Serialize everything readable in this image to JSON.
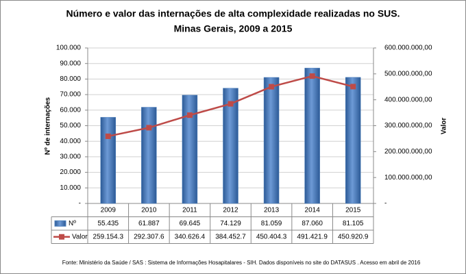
{
  "chart_data": {
    "type": "combo",
    "title": "Número e valor das internações de alta complexidade realizadas no SUS.",
    "subtitle": "Minas Gerais, 2009 a 2015",
    "y_label": "Nº de internações",
    "y2_label": "Valor",
    "source": "Fonte:  Ministério da Saúde / SAS : Sistema de Informações Hosapitalares - SIH. Dados disponíveis no site do DATASUS . Acesso em abril de 2016",
    "categories": [
      "2009",
      "2010",
      "2011",
      "2012",
      "2013",
      "2014",
      "2015"
    ],
    "series": [
      {
        "name": "Nº",
        "type": "bar",
        "color": "#4f81bd",
        "values": [
          55435,
          61887,
          69645,
          74129,
          81059,
          87060,
          81105
        ],
        "value_labels": [
          "55.435",
          "61.887",
          "69.645",
          "74.129",
          "81.059",
          "87.060",
          "81.105"
        ]
      },
      {
        "name": "Valor",
        "type": "line",
        "axis": "y2",
        "color": "#be4b48",
        "values": [
          259154300,
          292307600,
          340626400,
          384452700,
          450404300,
          491421900,
          450920900
        ],
        "value_labels": [
          "259.154.3",
          "292.307.6",
          "340.626.4",
          "384.452.7",
          "450.404.3",
          "491.421.9",
          "450.920.9"
        ]
      }
    ],
    "ylim": [
      0,
      100000
    ],
    "yticks": [
      {
        "value": 0,
        "label": "-"
      },
      {
        "value": 10000,
        "label": "10.000"
      },
      {
        "value": 20000,
        "label": "20.000"
      },
      {
        "value": 30000,
        "label": "30.000"
      },
      {
        "value": 40000,
        "label": "40.000"
      },
      {
        "value": 50000,
        "label": "50.000"
      },
      {
        "value": 60000,
        "label": "60.000"
      },
      {
        "value": 70000,
        "label": "70.000"
      },
      {
        "value": 80000,
        "label": "80.000"
      },
      {
        "value": 90000,
        "label": "90.000"
      },
      {
        "value": 100000,
        "label": "100.000"
      }
    ],
    "y2lim": [
      0,
      600000000
    ],
    "y2ticks": [
      {
        "value": 0,
        "label": "-"
      },
      {
        "value": 100000000,
        "label": "100.000.000,00"
      },
      {
        "value": 200000000,
        "label": "200.000.000,00"
      },
      {
        "value": 300000000,
        "label": "300.000.000,00"
      },
      {
        "value": 400000000,
        "label": "400.000.000,00"
      },
      {
        "value": 500000000,
        "label": "500.000.000,00"
      },
      {
        "value": 600000000,
        "label": "600.000.000,00"
      }
    ],
    "grid": true
  }
}
